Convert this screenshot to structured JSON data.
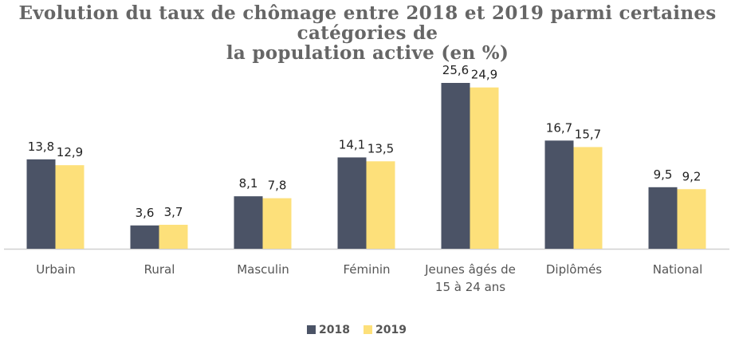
{
  "chart_data": {
    "type": "bar",
    "title": "Evolution du taux de chômage entre 2018 et 2019 parmi certaines catégories de\nla population active (en %)",
    "categories": [
      [
        "Urbain"
      ],
      [
        "Rural"
      ],
      [
        "Masculin"
      ],
      [
        "Féminin"
      ],
      [
        "Jeunes âgés de",
        "15 à 24 ans"
      ],
      [
        "Diplômés"
      ],
      [
        "National"
      ]
    ],
    "series": [
      {
        "name": "2018",
        "color": "#4b5366",
        "values": [
          13.8,
          3.6,
          8.1,
          14.1,
          25.6,
          16.7,
          9.5
        ],
        "labels": [
          "13,8",
          "3,6",
          "8,1",
          "14,1",
          "25,6",
          "16,7",
          "9,5"
        ]
      },
      {
        "name": "2019",
        "color": "#fde07a",
        "values": [
          12.9,
          3.7,
          7.8,
          13.5,
          24.9,
          15.7,
          9.2
        ],
        "labels": [
          "12,9",
          "3,7",
          "7,8",
          "13,5",
          "24,9",
          "15,7",
          "9,2"
        ]
      }
    ],
    "ylim": [
      0,
      26
    ],
    "grid": false,
    "legend_position": "bottom-center",
    "label_color": "#222222",
    "axis_color": "#d0d0d0"
  }
}
